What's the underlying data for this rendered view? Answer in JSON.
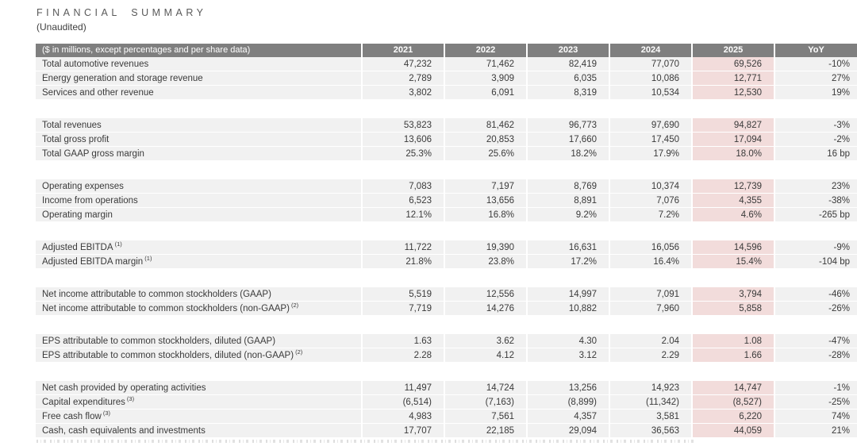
{
  "page": {
    "title": "FINANCIAL SUMMARY",
    "subtitle": "(Unaudited)"
  },
  "table": {
    "header": {
      "label": "($ in millions, except percentages and per share data)",
      "columns": [
        "2021",
        "2022",
        "2023",
        "2024",
        "2025",
        "YoY"
      ],
      "highlight_column": "2025"
    },
    "colors": {
      "header_bg": "#7f7f7f",
      "row_bg": "#f1f1f1",
      "highlight_bg": "#f2dcdb",
      "text": "#3a3a3a"
    },
    "sections": [
      {
        "rows": [
          {
            "label": "Total automotive revenues",
            "values": [
              "47,232",
              "71,462",
              "82,419",
              "77,070",
              "69,526"
            ],
            "yoy": "-10%"
          },
          {
            "label": "Energy generation and storage revenue",
            "values": [
              "2,789",
              "3,909",
              "6,035",
              "10,086",
              "12,771"
            ],
            "yoy": "27%"
          },
          {
            "label": "Services and other revenue",
            "values": [
              "3,802",
              "6,091",
              "8,319",
              "10,534",
              "12,530"
            ],
            "yoy": "19%"
          }
        ]
      },
      {
        "rows": [
          {
            "label": "Total revenues",
            "values": [
              "53,823",
              "81,462",
              "96,773",
              "97,690",
              "94,827"
            ],
            "yoy": "-3%"
          },
          {
            "label": "Total gross profit",
            "values": [
              "13,606",
              "20,853",
              "17,660",
              "17,450",
              "17,094"
            ],
            "yoy": "-2%"
          },
          {
            "label": "Total GAAP gross margin",
            "values": [
              "25.3%",
              "25.6%",
              "18.2%",
              "17.9%",
              "18.0%"
            ],
            "yoy": "16 bp"
          }
        ]
      },
      {
        "rows": [
          {
            "label": "Operating expenses",
            "values": [
              "7,083",
              "7,197",
              "8,769",
              "10,374",
              "12,739"
            ],
            "yoy": "23%"
          },
          {
            "label": "Income from operations",
            "values": [
              "6,523",
              "13,656",
              "8,891",
              "7,076",
              "4,355"
            ],
            "yoy": "-38%"
          },
          {
            "label": "Operating margin",
            "values": [
              "12.1%",
              "16.8%",
              "9.2%",
              "7.2%",
              "4.6%"
            ],
            "yoy": "-265 bp"
          }
        ]
      },
      {
        "rows": [
          {
            "label": "Adjusted EBITDA",
            "sup": "(1)",
            "values": [
              "11,722",
              "19,390",
              "16,631",
              "16,056",
              "14,596"
            ],
            "yoy": "-9%"
          },
          {
            "label": "Adjusted EBITDA margin",
            "sup": "(1)",
            "values": [
              "21.8%",
              "23.8%",
              "17.2%",
              "16.4%",
              "15.4%"
            ],
            "yoy": "-104 bp"
          }
        ]
      },
      {
        "rows": [
          {
            "label": "Net income attributable to common stockholders (GAAP)",
            "values": [
              "5,519",
              "12,556",
              "14,997",
              "7,091",
              "3,794"
            ],
            "yoy": "-46%"
          },
          {
            "label": "Net income attributable to common stockholders (non-GAAP)",
            "sup": "(2)",
            "values": [
              "7,719",
              "14,276",
              "10,882",
              "7,960",
              "5,858"
            ],
            "yoy": "-26%"
          }
        ]
      },
      {
        "rows": [
          {
            "label": "EPS attributable to common stockholders, diluted (GAAP)",
            "values": [
              "1.63",
              "3.62",
              "4.30",
              "2.04",
              "1.08"
            ],
            "yoy": "-47%"
          },
          {
            "label": "EPS attributable to common stockholders, diluted (non-GAAP)",
            "sup": "(2)",
            "values": [
              "2.28",
              "4.12",
              "3.12",
              "2.29",
              "1.66"
            ],
            "yoy": "-28%"
          }
        ]
      },
      {
        "rows": [
          {
            "label": "Net cash provided by operating activities",
            "values": [
              "11,497",
              "14,724",
              "13,256",
              "14,923",
              "14,747"
            ],
            "yoy": "-1%"
          },
          {
            "label": "Capital expenditures",
            "sup": "(3)",
            "values": [
              "(6,514)",
              "(7,163)",
              "(8,899)",
              "(11,342)",
              "(8,527)"
            ],
            "yoy": "-25%"
          },
          {
            "label": "Free cash flow",
            "sup": "(3)",
            "values": [
              "4,983",
              "7,561",
              "4,357",
              "3,581",
              "6,220"
            ],
            "yoy": "74%"
          },
          {
            "label": "Cash, cash equivalents and investments",
            "values": [
              "17,707",
              "22,185",
              "29,094",
              "36,563",
              "44,059"
            ],
            "yoy": "21%"
          }
        ]
      }
    ]
  }
}
